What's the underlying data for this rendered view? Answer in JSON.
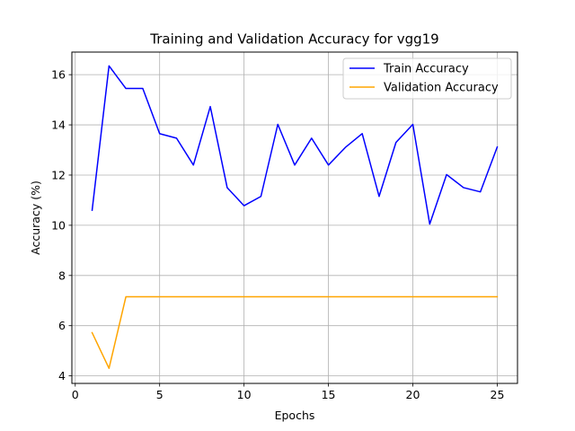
{
  "chart_data": {
    "type": "line",
    "title": "Training and Validation Accuracy for vgg19",
    "xlabel": "Epochs",
    "ylabel": "Accuracy (%)",
    "xlim": [
      -0.2,
      26.2
    ],
    "ylim": [
      3.7,
      16.9
    ],
    "xticks": [
      0,
      5,
      10,
      15,
      20,
      25
    ],
    "yticks": [
      4,
      6,
      8,
      10,
      12,
      14,
      16
    ],
    "grid": true,
    "legend_position": "upper right",
    "x": [
      1,
      2,
      3,
      4,
      5,
      6,
      7,
      8,
      9,
      10,
      11,
      12,
      13,
      14,
      15,
      16,
      17,
      18,
      19,
      20,
      21,
      22,
      23,
      24,
      25
    ],
    "series": [
      {
        "name": "Train Accuracy",
        "color": "#0000ff",
        "values": [
          10.6,
          16.35,
          15.45,
          15.45,
          13.65,
          13.47,
          12.4,
          14.73,
          11.5,
          10.78,
          11.15,
          14.02,
          12.4,
          13.47,
          12.4,
          13.1,
          13.65,
          11.15,
          13.3,
          14.02,
          10.05,
          12.02,
          11.5,
          11.33,
          13.12
        ]
      },
      {
        "name": "Validation Accuracy",
        "color": "#ffa500",
        "values": [
          5.72,
          4.3,
          7.15,
          7.15,
          7.15,
          7.15,
          7.15,
          7.15,
          7.15,
          7.15,
          7.15,
          7.15,
          7.15,
          7.15,
          7.15,
          7.15,
          7.15,
          7.15,
          7.15,
          7.15,
          7.15,
          7.15,
          7.15,
          7.15,
          7.15
        ]
      }
    ]
  }
}
